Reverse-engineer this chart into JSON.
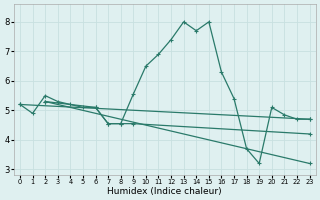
{
  "xlabel": "Humidex (Indice chaleur)",
  "background_color": "#dff0f0",
  "grid_color": "#c8e0e0",
  "line_color": "#2a7a6a",
  "xlim": [
    -0.5,
    23.5
  ],
  "ylim": [
    2.8,
    8.6
  ],
  "yticks": [
    3,
    4,
    5,
    6,
    7,
    8
  ],
  "xticks": [
    0,
    1,
    2,
    3,
    4,
    5,
    6,
    7,
    8,
    9,
    10,
    11,
    12,
    13,
    14,
    15,
    16,
    17,
    18,
    19,
    20,
    21,
    22,
    23
  ],
  "series": [
    {
      "x": [
        0,
        1,
        2,
        3,
        4,
        5,
        6,
        7,
        8,
        9,
        10,
        11,
        12,
        13,
        14,
        15,
        16,
        17,
        18,
        19,
        20,
        21,
        22,
        23
      ],
      "y": [
        5.2,
        4.9,
        5.5,
        5.3,
        5.2,
        5.1,
        5.1,
        4.55,
        4.55,
        5.55,
        6.5,
        6.9,
        7.4,
        8.0,
        7.7,
        8.0,
        6.3,
        5.4,
        3.7,
        3.2,
        5.1,
        4.85,
        4.7,
        4.7
      ]
    },
    {
      "x": [
        0,
        23
      ],
      "y": [
        5.2,
        4.7
      ]
    },
    {
      "x": [
        2,
        23
      ],
      "y": [
        5.3,
        3.2
      ]
    },
    {
      "x": [
        2,
        6,
        7,
        8,
        9,
        23
      ],
      "y": [
        5.3,
        5.1,
        4.55,
        4.55,
        4.55,
        4.2
      ]
    }
  ]
}
